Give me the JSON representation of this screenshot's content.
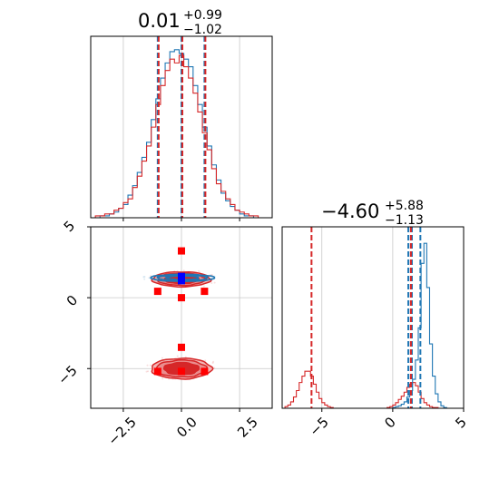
{
  "chart_data": [
    {
      "type": "histogram",
      "panel": "marginal-x",
      "title": {
        "value": "0.01",
        "plus": "+0.99",
        "minus": "−1.02"
      },
      "x_range": [
        -3.9,
        3.9
      ],
      "grid": true,
      "quantile_lines": [
        -1.02,
        0.0,
        0.99
      ],
      "series": [
        {
          "color": "#1f77b4",
          "bin_edges_start": -3.9,
          "bin_width": 0.2,
          "counts": [
            0,
            0,
            1,
            1,
            2,
            3,
            5,
            7,
            12,
            17,
            24,
            32,
            40,
            52,
            63,
            74,
            82,
            88,
            89,
            87,
            84,
            80,
            70,
            60,
            48,
            38,
            28,
            20,
            13,
            9,
            6,
            4,
            2,
            1,
            1,
            0,
            0,
            0,
            0
          ]
        },
        {
          "color": "#d62728",
          "bin_edges_start": -3.9,
          "bin_width": 0.2,
          "counts": [
            0,
            1,
            1,
            2,
            2,
            4,
            5,
            8,
            10,
            16,
            22,
            30,
            38,
            48,
            60,
            70,
            78,
            84,
            82,
            86,
            80,
            74,
            66,
            56,
            45,
            36,
            26,
            18,
            14,
            10,
            7,
            4,
            3,
            2,
            1,
            1,
            0,
            0,
            0
          ]
        }
      ]
    },
    {
      "type": "histogram",
      "panel": "marginal-y",
      "title": {
        "value": "−4.60",
        "plus": "+5.88",
        "minus": "−1.13"
      },
      "x_range": [
        -7.8,
        5.0
      ],
      "x_ticks": [
        "−5",
        "0",
        "5"
      ],
      "grid": true,
      "quantile_lines_red": [
        -5.73,
        1.28
      ],
      "quantile_lines_blue": [
        1.1,
        1.35,
        1.95
      ],
      "series": [
        {
          "color": "#1f77b4",
          "bin_edges_start": -7.8,
          "bin_width": 0.2,
          "counts": [
            0,
            0,
            0,
            0,
            0,
            0,
            0,
            0,
            0,
            0,
            0,
            0,
            0,
            0,
            0,
            0,
            0,
            0,
            0,
            0,
            0,
            0,
            0,
            0,
            0,
            0,
            0,
            0,
            0,
            0,
            0,
            0,
            0,
            0,
            0,
            0,
            0,
            0,
            0,
            1,
            2,
            3,
            5,
            8,
            14,
            22,
            36,
            60,
            100,
            180,
            205,
            150,
            80,
            40,
            18,
            8,
            3,
            1,
            0,
            0,
            0,
            0,
            0,
            0
          ]
        },
        {
          "color": "#d62728",
          "bin_edges_start": -7.8,
          "bin_width": 0.2,
          "counts": [
            0,
            2,
            4,
            8,
            14,
            22,
            32,
            40,
            46,
            46,
            40,
            30,
            20,
            12,
            7,
            4,
            2,
            1,
            0,
            0,
            0,
            0,
            0,
            0,
            0,
            0,
            0,
            0,
            0,
            0,
            0,
            0,
            0,
            0,
            0,
            0,
            0,
            1,
            2,
            4,
            7,
            11,
            15,
            20,
            26,
            30,
            32,
            28,
            20,
            12,
            7,
            4,
            2,
            1,
            1,
            0,
            0,
            0,
            0,
            0,
            0,
            0,
            0,
            0
          ]
        }
      ]
    },
    {
      "type": "contour",
      "panel": "joint",
      "x_range": [
        -3.9,
        3.9
      ],
      "y_range": [
        -7.8,
        5.0
      ],
      "x_ticks": [
        "−2.5",
        "0.0",
        "2.5"
      ],
      "y_ticks": [
        "−5",
        "0",
        "5"
      ],
      "grid": true,
      "series": [
        {
          "color": "#d62728",
          "modes": [
            {
              "center": [
                0.0,
                1.3
              ],
              "width": 2.5,
              "height": 1.05
            },
            {
              "center": [
                0.0,
                -5.0
              ],
              "width": 2.6,
              "height": 1.45
            }
          ],
          "markers": [
            [
              -1.02,
              0.45
            ],
            [
              0.0,
              1.3
            ],
            [
              0.99,
              0.45
            ],
            [
              0.0,
              -5.2
            ],
            [
              -1.02,
              -5.2
            ],
            [
              0.99,
              -5.2
            ],
            [
              0.0,
              3.3
            ],
            [
              0.0,
              -3.5
            ],
            [
              0.0,
              0.0
            ]
          ]
        },
        {
          "color": "#1f77b4",
          "modes": [
            {
              "center": [
                0.05,
                1.4
              ],
              "width": 2.75,
              "height": 0.5
            }
          ],
          "markers": [
            [
              0.0,
              1.5
            ],
            [
              0.0,
              1.2
            ]
          ]
        }
      ]
    }
  ]
}
